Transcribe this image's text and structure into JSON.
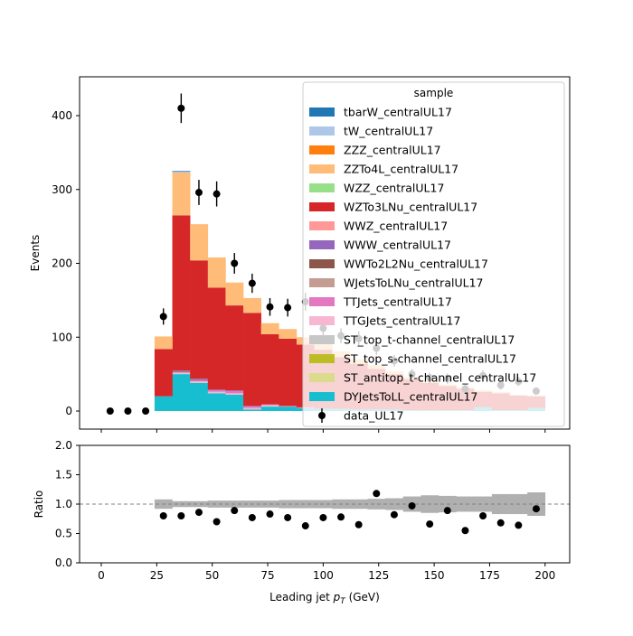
{
  "chart_data": [
    {
      "type": "bar",
      "stacked": true,
      "ylabel": "Events",
      "ylim": [
        -25,
        452
      ],
      "xlim": [
        -10,
        210
      ],
      "x_ticks": [
        0,
        25,
        50,
        75,
        100,
        125,
        150,
        175,
        200
      ],
      "y_ticks": [
        0,
        100,
        200,
        300,
        400
      ],
      "legend_title": "sample",
      "legend_position": "top-right",
      "bin_edges": [
        0,
        8,
        16,
        24,
        32,
        40,
        48,
        56,
        64,
        72,
        80,
        88,
        96,
        104,
        112,
        120,
        128,
        136,
        144,
        152,
        160,
        168,
        176,
        184,
        192,
        200
      ],
      "series": [
        {
          "name": "DYJetsToLL_centralUL17",
          "color": "#17becf",
          "values": [
            0,
            0,
            0,
            20,
            50,
            38,
            24,
            22,
            2,
            6,
            6,
            4,
            3,
            3,
            2,
            2,
            2,
            1,
            1,
            1,
            1,
            5,
            1,
            1,
            4
          ]
        },
        {
          "name": "ST_antitop_t-channel_centralUL17",
          "color": "#dbdb8d",
          "values": [
            0,
            0,
            0,
            0,
            0,
            0,
            0,
            0,
            0,
            0,
            0,
            0,
            0,
            0,
            0,
            0,
            0,
            0,
            0,
            0,
            0,
            0,
            0,
            0,
            0
          ]
        },
        {
          "name": "ST_top_s-channel_centralUL17",
          "color": "#bcbd22",
          "values": [
            0,
            0,
            0,
            0,
            0,
            0,
            0,
            0,
            0,
            0,
            0,
            0,
            0,
            0,
            0,
            0,
            0,
            0,
            0,
            0,
            0,
            0,
            0,
            0,
            0
          ]
        },
        {
          "name": "ST_top_t-channel_centralUL17",
          "color": "#c7c7c7",
          "values": [
            0,
            0,
            0,
            0,
            1,
            1,
            1,
            1,
            1,
            1,
            0,
            0,
            0,
            0,
            0,
            0,
            0,
            0,
            0,
            0,
            0,
            0,
            0,
            0,
            0
          ]
        },
        {
          "name": "TTGJets_centralUL17",
          "color": "#f7b6d2",
          "values": [
            0,
            0,
            0,
            0,
            1,
            1,
            1,
            1,
            1,
            1,
            0,
            0,
            0,
            0,
            0,
            0,
            0,
            0,
            0,
            0,
            0,
            0,
            0,
            0,
            0
          ]
        },
        {
          "name": "TTJets_centralUL17",
          "color": "#e377c2",
          "values": [
            0,
            0,
            0,
            0,
            1,
            2,
            2,
            3,
            2,
            1,
            1,
            1,
            0,
            0,
            0,
            0,
            0,
            0,
            0,
            0,
            0,
            0,
            0,
            0,
            0
          ]
        },
        {
          "name": "WJetsToLNu_centralUL17",
          "color": "#c49c94",
          "values": [
            0,
            0,
            0,
            0,
            0,
            0,
            0,
            0,
            0,
            0,
            0,
            0,
            0,
            0,
            0,
            0,
            0,
            0,
            0,
            0,
            0,
            0,
            0,
            0,
            0
          ]
        },
        {
          "name": "WWTo2L2Nu_centralUL17",
          "color": "#8c564b",
          "values": [
            0,
            0,
            0,
            0,
            1,
            1,
            0,
            0,
            0,
            0,
            0,
            0,
            0,
            0,
            0,
            0,
            0,
            0,
            0,
            0,
            0,
            0,
            0,
            0,
            0
          ]
        },
        {
          "name": "WWW_centralUL17",
          "color": "#9467bd",
          "values": [
            0,
            0,
            0,
            0,
            1,
            1,
            1,
            1,
            1,
            0,
            0,
            0,
            0,
            0,
            0,
            0,
            0,
            0,
            0,
            0,
            0,
            0,
            0,
            0,
            0
          ]
        },
        {
          "name": "WWZ_centralUL17",
          "color": "#ff9896",
          "values": [
            0,
            0,
            0,
            0,
            0,
            0,
            0,
            0,
            0,
            0,
            0,
            0,
            0,
            0,
            0,
            0,
            0,
            0,
            0,
            0,
            0,
            0,
            0,
            0,
            0
          ]
        },
        {
          "name": "WZTo3LNu_centralUL17",
          "color": "#d62728",
          "values": [
            0,
            0,
            0,
            64,
            210,
            160,
            138,
            115,
            126,
            95,
            91,
            85,
            80,
            70,
            62,
            55,
            48,
            42,
            37,
            33,
            29,
            21,
            23,
            20,
            16
          ]
        },
        {
          "name": "WZZ_centralUL17",
          "color": "#98df8a",
          "values": [
            0,
            0,
            0,
            0,
            0,
            0,
            0,
            0,
            0,
            0,
            0,
            0,
            0,
            0,
            0,
            0,
            0,
            0,
            0,
            0,
            0,
            0,
            0,
            0,
            0
          ]
        },
        {
          "name": "ZZTo4L_centralUL17",
          "color": "#ffbb78",
          "values": [
            0,
            0,
            0,
            17,
            58,
            49,
            41,
            31,
            20,
            15,
            13,
            10,
            9,
            8,
            6,
            5,
            4,
            3,
            3,
            2,
            2,
            2,
            2,
            1,
            1
          ]
        },
        {
          "name": "ZZZ_centralUL17",
          "color": "#ff7f0e",
          "values": [
            0,
            0,
            0,
            0,
            0,
            0,
            0,
            0,
            0,
            0,
            0,
            0,
            0,
            0,
            0,
            0,
            0,
            0,
            0,
            0,
            0,
            0,
            0,
            0,
            0
          ]
        },
        {
          "name": "tW_centralUL17",
          "color": "#aec7e8",
          "values": [
            0,
            0,
            0,
            0,
            1,
            0,
            0,
            0,
            0,
            0,
            0,
            0,
            0,
            0,
            0,
            0,
            0,
            0,
            0,
            0,
            0,
            0,
            0,
            0,
            0
          ]
        },
        {
          "name": "tbarW_centralUL17",
          "color": "#1f77b4",
          "values": [
            0,
            0,
            0,
            0,
            1,
            0,
            0,
            0,
            0,
            0,
            0,
            0,
            0,
            0,
            0,
            0,
            0,
            0,
            0,
            0,
            0,
            0,
            0,
            0,
            0
          ]
        }
      ],
      "data": {
        "name": "data_UL17",
        "x": [
          4,
          12,
          20,
          28,
          36,
          44,
          52,
          60,
          68,
          76,
          84,
          92,
          100,
          108,
          116,
          124,
          132,
          140,
          148,
          156,
          164,
          172,
          180,
          188,
          196
        ],
        "y": [
          0,
          0,
          0,
          128,
          410,
          296,
          294,
          200,
          173,
          141,
          140,
          148,
          112,
          102,
          98,
          85,
          68,
          50,
          45,
          44,
          30,
          48,
          35,
          40,
          27
        ],
        "yerr": [
          0,
          0,
          0,
          11,
          20,
          17,
          17,
          14,
          13,
          12,
          12,
          12,
          11,
          10,
          10,
          9,
          8,
          7,
          7,
          7,
          6,
          7,
          6,
          6,
          5
        ]
      }
    },
    {
      "type": "scatter",
      "xlabel": "Leading jet  p_T (GeV)",
      "ylabel": "Ratio",
      "ylim": [
        0,
        2
      ],
      "xlim": [
        -10,
        210
      ],
      "x_ticks": [
        0,
        25,
        50,
        75,
        100,
        125,
        150,
        175,
        200
      ],
      "y_ticks": [
        0.0,
        0.5,
        1.0,
        1.5,
        2.0
      ],
      "reference_line": 1.0,
      "x": [
        28,
        36,
        44,
        52,
        60,
        68,
        76,
        84,
        92,
        100,
        108,
        116,
        124,
        132,
        140,
        148,
        156,
        164,
        172,
        180,
        188,
        196
      ],
      "y": [
        0.8,
        0.8,
        0.86,
        0.7,
        0.89,
        0.77,
        0.83,
        0.77,
        0.63,
        0.77,
        0.78,
        0.65,
        1.18,
        0.82,
        0.97,
        0.66,
        0.89,
        0.55,
        0.8,
        0.68,
        0.64,
        0.92
      ],
      "band_halfwidth": [
        0.08,
        0.05,
        0.05,
        0.06,
        0.06,
        0.06,
        0.06,
        0.07,
        0.07,
        0.07,
        0.08,
        0.08,
        0.09,
        0.1,
        0.13,
        0.15,
        0.14,
        0.13,
        0.13,
        0.17,
        0.17,
        0.2
      ]
    }
  ],
  "text": {
    "xlabel": "Leading jet",
    "xlabel_math": "p",
    "xlabel_sub": "T",
    "xlabel_unit": "(GeV)",
    "legend_title": "sample"
  }
}
